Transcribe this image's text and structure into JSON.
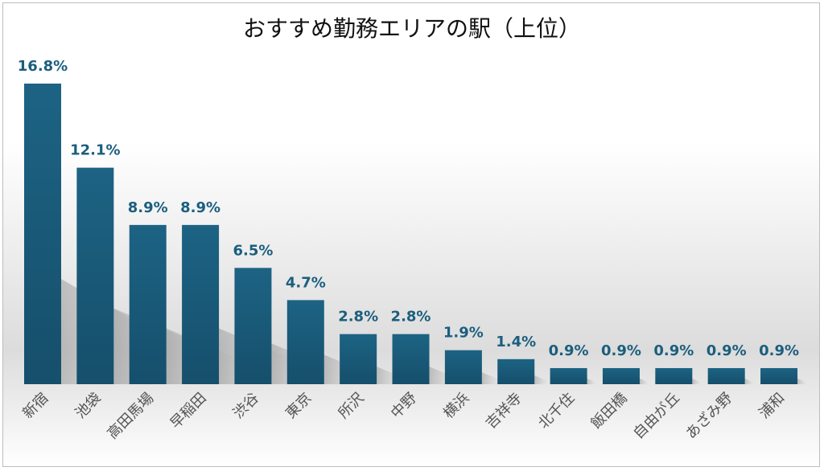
{
  "chart_data": {
    "type": "bar",
    "title": "おすすめ勤務エリアの駅（上位）",
    "categories": [
      "新宿",
      "池袋",
      "高田馬場",
      "早稲田",
      "渋谷",
      "東京",
      "所沢",
      "中野",
      "横浜",
      "吉祥寺",
      "北千住",
      "飯田橋",
      "自由が丘",
      "あざみ野",
      "浦和"
    ],
    "values": [
      16.8,
      12.1,
      8.9,
      8.9,
      6.5,
      4.7,
      2.8,
      2.8,
      1.9,
      1.4,
      0.9,
      0.9,
      0.9,
      0.9,
      0.9
    ],
    "value_labels": [
      "16.8%",
      "12.1%",
      "8.9%",
      "8.9%",
      "6.5%",
      "4.7%",
      "2.8%",
      "2.8%",
      "1.9%",
      "1.4%",
      "0.9%",
      "0.9%",
      "0.9%",
      "0.9%",
      "0.9%"
    ],
    "unit": "%",
    "ylim": [
      0,
      16.8
    ],
    "grid": false,
    "legend": "none",
    "colors": {
      "bar": "#1b5e7e",
      "bar_dark": "#16506d",
      "label": "#1b5e7e",
      "axis_text": "#555555"
    }
  }
}
